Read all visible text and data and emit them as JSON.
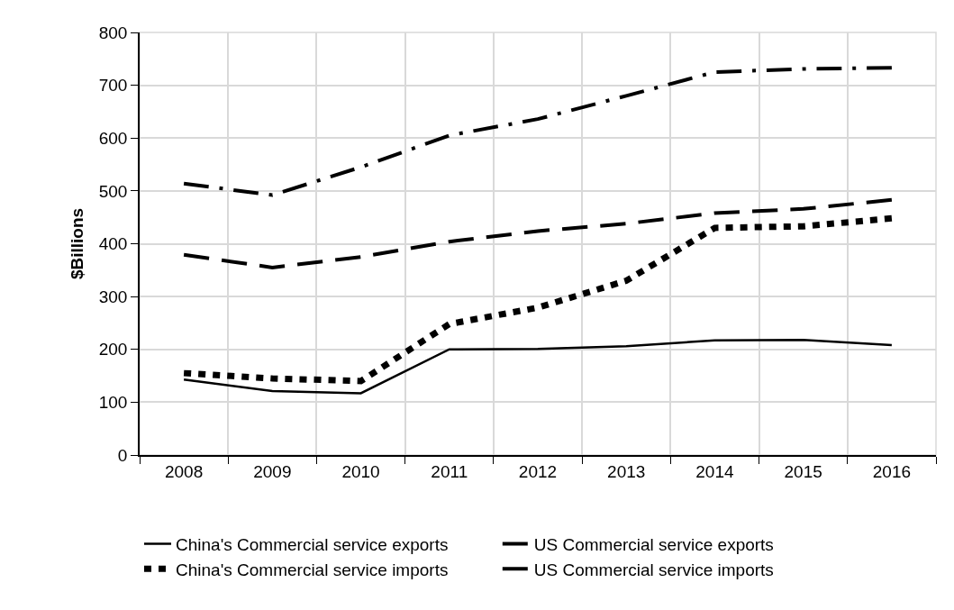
{
  "chart_data": {
    "type": "line",
    "ylabel": "$Billions",
    "categories": [
      "2008",
      "2009",
      "2010",
      "2011",
      "2012",
      "2013",
      "2014",
      "2015",
      "2016"
    ],
    "series": [
      {
        "name": "China's Commercial service exports",
        "color": "#000000",
        "line_style": "solid",
        "values": [
          143,
          121,
          117,
          200,
          201,
          206,
          217,
          218,
          208
        ]
      },
      {
        "name": "US Commercial service exports",
        "color": "#000000",
        "line_style": "dashdot",
        "values": [
          514,
          492,
          545,
          605,
          636,
          680,
          725,
          731,
          733
        ]
      },
      {
        "name": "China's Commercial service imports",
        "color": "#000000",
        "line_style": "dotted",
        "values": [
          155,
          145,
          140,
          248,
          279,
          330,
          430,
          433,
          448
        ]
      },
      {
        "name": "US Commercial service imports",
        "color": "#000000",
        "line_style": "dashed",
        "values": [
          379,
          355,
          375,
          404,
          424,
          438,
          458,
          466,
          483
        ]
      }
    ],
    "ylim": [
      0,
      800
    ],
    "yticks": [
      0,
      100,
      200,
      300,
      400,
      500,
      600,
      700,
      800
    ],
    "grid": true,
    "legend": "bottom",
    "marker": "none"
  }
}
